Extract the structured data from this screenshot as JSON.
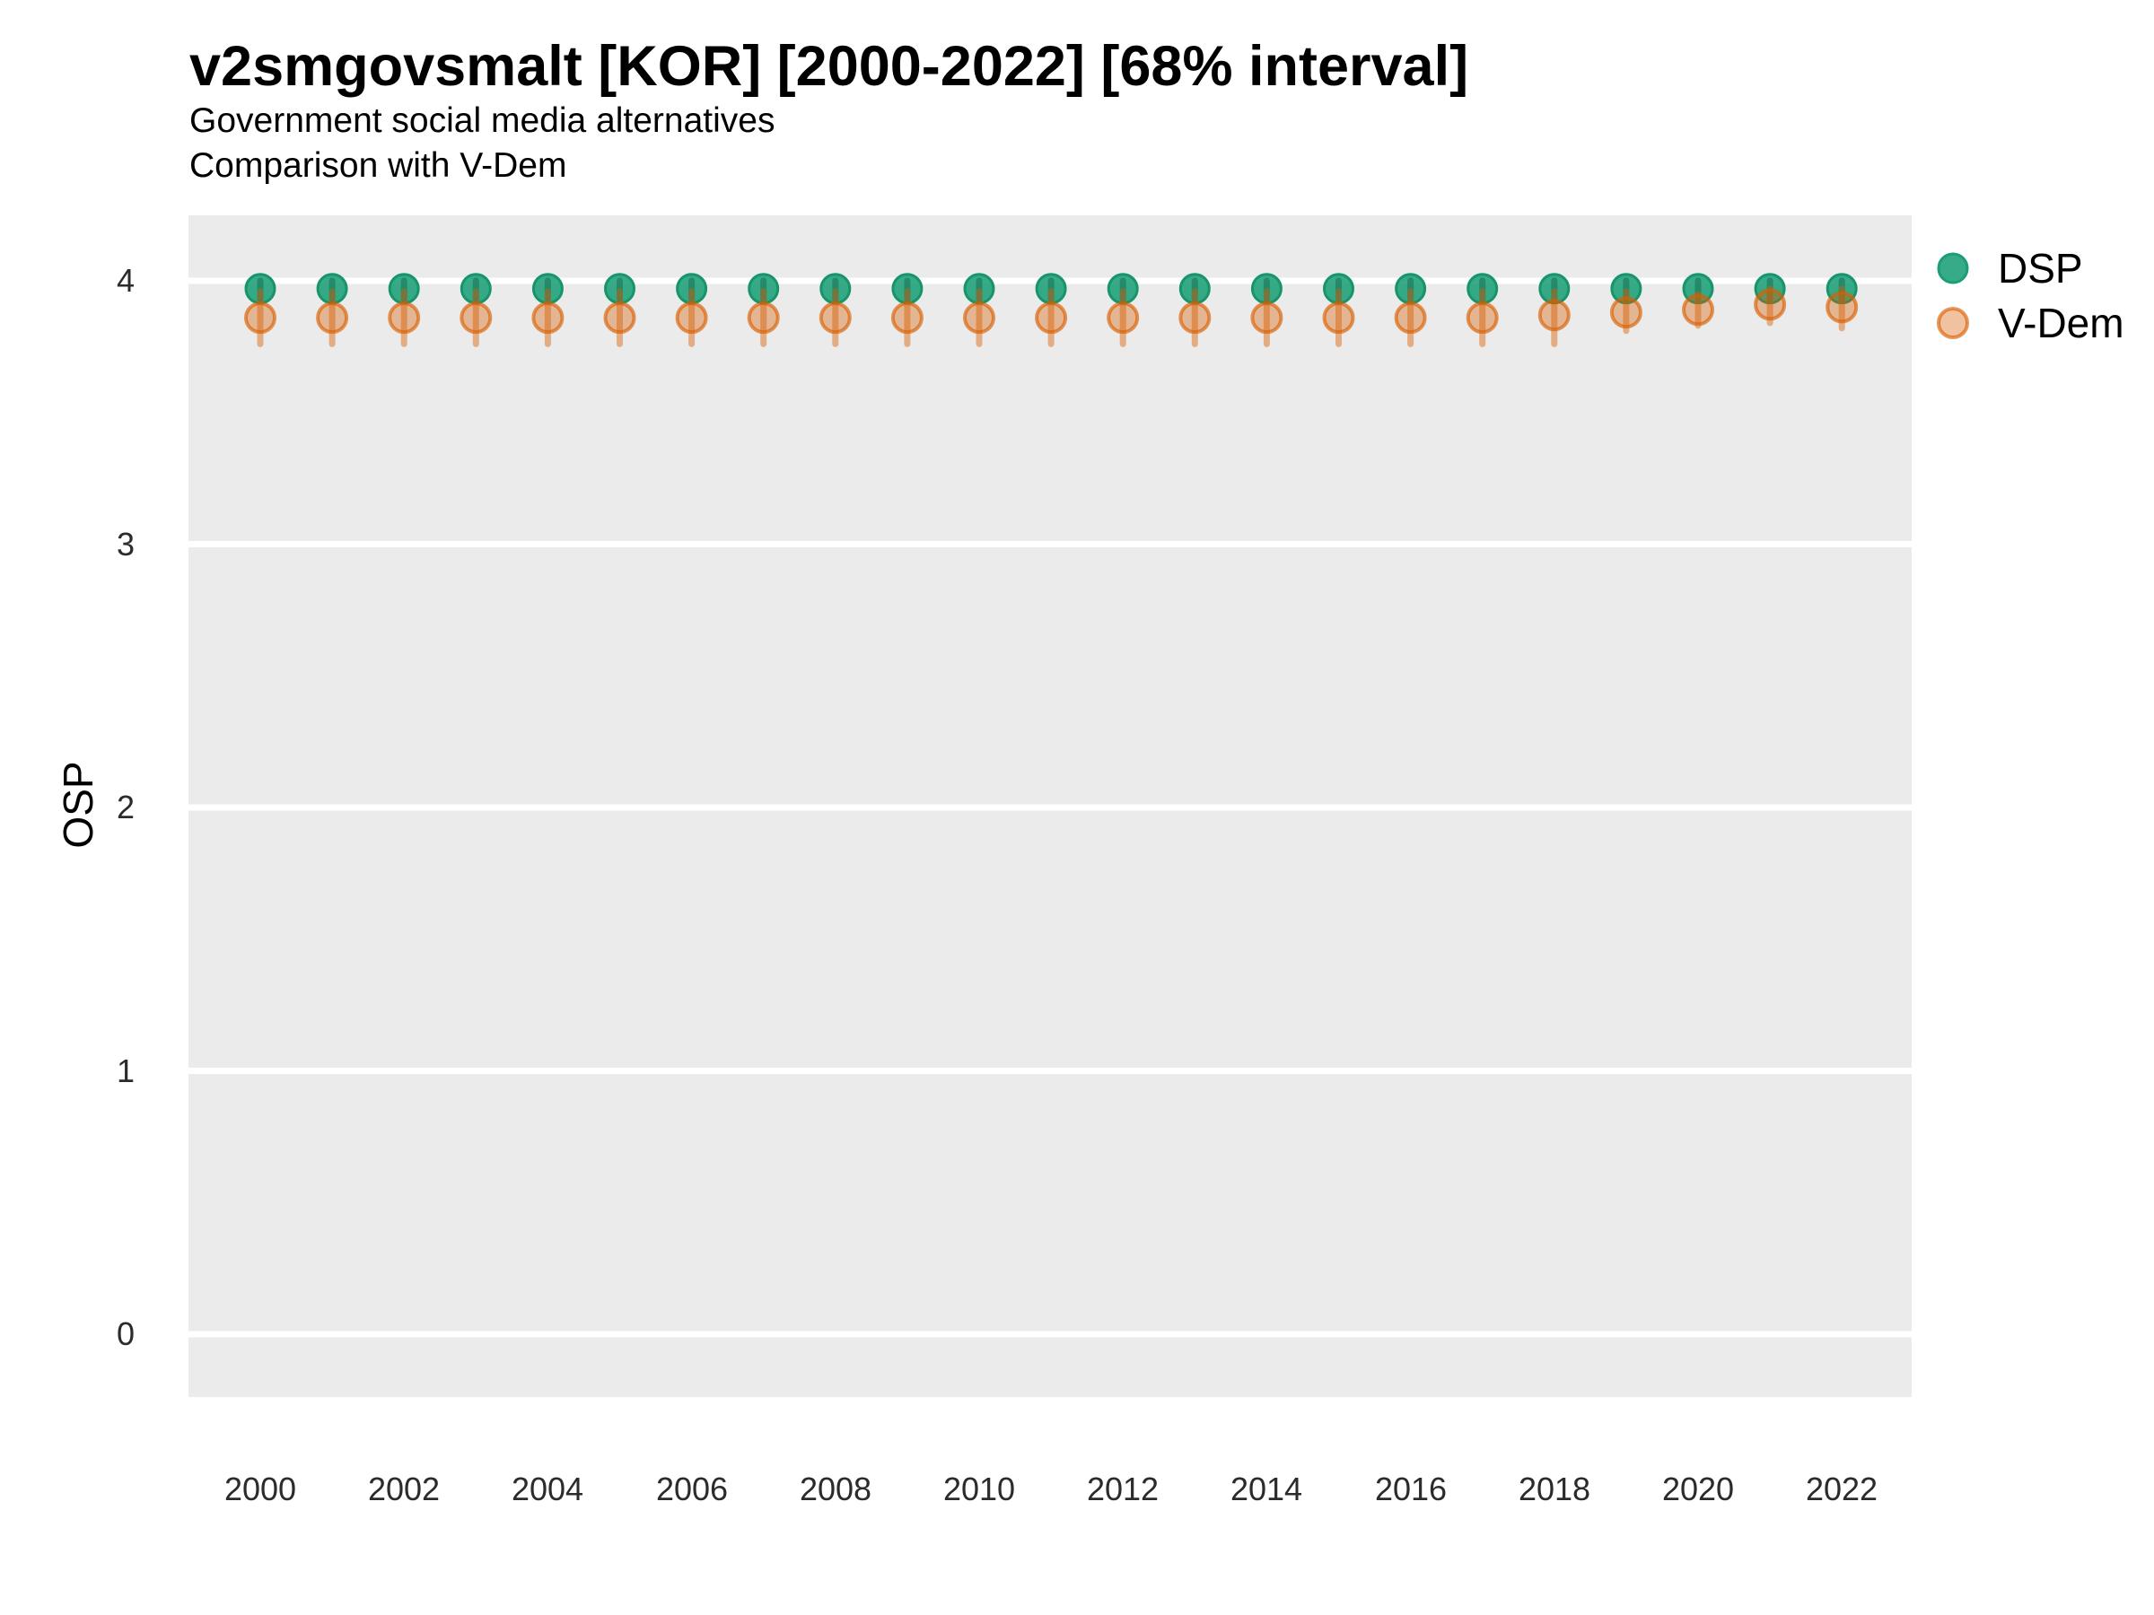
{
  "header": {
    "title": "v2smgovsmalt [KOR] [2000-2022] [68% interval]",
    "subtitle1": "Government social media alternatives",
    "subtitle2": "Comparison with V-Dem"
  },
  "axes": {
    "y_label": "OSP",
    "y_ticks": [
      4,
      3,
      2,
      1,
      0
    ],
    "x_ticks": [
      2000,
      2002,
      2004,
      2006,
      2008,
      2010,
      2012,
      2014,
      2016,
      2018,
      2020,
      2022
    ]
  },
  "legend": {
    "items": [
      {
        "label": "DSP",
        "color": "#1B9E77"
      },
      {
        "label": "V-Dem",
        "color": "#D95F02"
      }
    ]
  },
  "style": {
    "panel_background": "#EBEBEB",
    "gridline_color": "#FFFFFF",
    "dsp_color": "#1B9E77",
    "vdem_color": "#D95F02"
  },
  "chart_data": {
    "type": "scatter",
    "title": "v2smgovsmalt [KOR] [2000-2022] [68% interval]",
    "subtitle": [
      "Government social media alternatives",
      "Comparison with V-Dem"
    ],
    "xlabel": "",
    "ylabel": "OSP",
    "interval": "68%",
    "ylim": [
      -0.24,
      4.25
    ],
    "yticks": [
      0,
      1,
      2,
      3,
      4
    ],
    "xticks": [
      2000,
      2002,
      2004,
      2006,
      2008,
      2010,
      2012,
      2014,
      2016,
      2018,
      2020,
      2022
    ],
    "grid": {
      "major_y": [
        0,
        1,
        2,
        3,
        4
      ],
      "color": "#FFFFFF",
      "panel_bg": "#EBEBEB"
    },
    "legend_position": "right-top",
    "x": [
      2000,
      2001,
      2002,
      2003,
      2004,
      2005,
      2006,
      2007,
      2008,
      2009,
      2010,
      2011,
      2012,
      2013,
      2014,
      2015,
      2016,
      2017,
      2018,
      2019,
      2020,
      2021,
      2022
    ],
    "series": [
      {
        "name": "DSP",
        "color": "#1B9E77",
        "values": [
          3.97,
          3.97,
          3.97,
          3.97,
          3.97,
          3.97,
          3.97,
          3.97,
          3.97,
          3.97,
          3.97,
          3.97,
          3.97,
          3.97,
          3.97,
          3.97,
          3.97,
          3.97,
          3.97,
          3.97,
          3.97,
          3.97,
          3.97
        ],
        "lower": [
          3.93,
          3.93,
          3.93,
          3.93,
          3.93,
          3.93,
          3.93,
          3.93,
          3.93,
          3.93,
          3.93,
          3.93,
          3.93,
          3.93,
          3.93,
          3.93,
          3.93,
          3.93,
          3.93,
          3.93,
          3.93,
          3.93,
          3.93
        ],
        "upper": [
          4.0,
          4.0,
          4.0,
          4.0,
          4.0,
          4.0,
          4.0,
          4.0,
          4.0,
          4.0,
          4.0,
          4.0,
          4.0,
          4.0,
          4.0,
          4.0,
          4.0,
          4.0,
          4.0,
          4.0,
          4.0,
          4.0,
          4.0
        ]
      },
      {
        "name": "V-Dem",
        "color": "#D95F02",
        "values": [
          3.86,
          3.86,
          3.86,
          3.86,
          3.86,
          3.86,
          3.86,
          3.86,
          3.86,
          3.86,
          3.86,
          3.86,
          3.86,
          3.86,
          3.86,
          3.86,
          3.86,
          3.86,
          3.87,
          3.88,
          3.89,
          3.91,
          3.9
        ],
        "lower": [
          3.76,
          3.76,
          3.76,
          3.76,
          3.76,
          3.76,
          3.76,
          3.76,
          3.76,
          3.76,
          3.76,
          3.76,
          3.76,
          3.76,
          3.76,
          3.76,
          3.76,
          3.76,
          3.76,
          3.81,
          3.83,
          3.84,
          3.82
        ],
        "upper": [
          3.96,
          3.96,
          3.96,
          3.96,
          3.96,
          3.96,
          3.96,
          3.96,
          3.96,
          3.96,
          3.96,
          3.96,
          3.96,
          3.96,
          3.96,
          3.96,
          3.96,
          3.96,
          3.96,
          3.96,
          3.95,
          3.97,
          3.97
        ]
      }
    ]
  }
}
